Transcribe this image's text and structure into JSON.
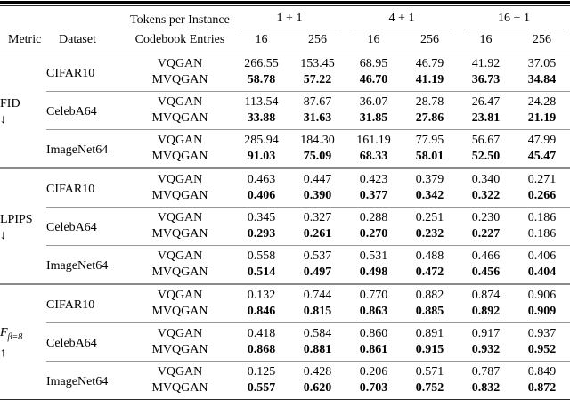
{
  "page": {
    "background": "#ffffff",
    "text_color": "#000000"
  },
  "rule_colors": {
    "heavy": "#000000",
    "header_rule": "#151515",
    "block_divider": "#989898",
    "section_divider": "#8a8a8a",
    "cmidrule": "#999999"
  },
  "table": {
    "header": {
      "tokens_per_instance_label": "Tokens per Instance",
      "codebook_entries_label": "Codebook Entries",
      "metric_label": "Metric",
      "dataset_label": "Dataset",
      "token_groups": [
        "1 + 1",
        "4 + 1",
        "16 + 1"
      ],
      "codebook_sizes": [
        "16",
        "256",
        "16",
        "256",
        "16",
        "256"
      ]
    },
    "sections": [
      {
        "metric": "FID",
        "metric_subscript": "",
        "direction_arrow": "↓",
        "datasets": [
          {
            "name": "CIFAR10",
            "rows": [
              {
                "model": "VQGAN",
                "values": [
                  "266.55",
                  "153.45",
                  "68.95",
                  "46.79",
                  "41.92",
                  "37.05"
                ],
                "bold": [
                  0,
                  0,
                  0,
                  0,
                  0,
                  0
                ]
              },
              {
                "model": "MVQGAN",
                "values": [
                  "58.78",
                  "57.22",
                  "46.70",
                  "41.19",
                  "36.73",
                  "34.84"
                ],
                "bold": [
                  1,
                  1,
                  1,
                  1,
                  1,
                  1
                ]
              }
            ]
          },
          {
            "name": "CelebA64",
            "rows": [
              {
                "model": "VQGAN",
                "values": [
                  "113.54",
                  "87.67",
                  "36.07",
                  "28.78",
                  "26.47",
                  "24.28"
                ],
                "bold": [
                  0,
                  0,
                  0,
                  0,
                  0,
                  0
                ]
              },
              {
                "model": "MVQGAN",
                "values": [
                  "33.88",
                  "31.63",
                  "31.85",
                  "27.86",
                  "23.81",
                  "21.19"
                ],
                "bold": [
                  1,
                  1,
                  1,
                  1,
                  1,
                  1
                ]
              }
            ]
          },
          {
            "name": "ImageNet64",
            "rows": [
              {
                "model": "VQGAN",
                "values": [
                  "285.94",
                  "184.30",
                  "161.19",
                  "77.95",
                  "56.67",
                  "47.99"
                ],
                "bold": [
                  0,
                  0,
                  0,
                  0,
                  0,
                  0
                ]
              },
              {
                "model": "MVQGAN",
                "values": [
                  "91.03",
                  "75.09",
                  "68.33",
                  "58.01",
                  "52.50",
                  "45.47"
                ],
                "bold": [
                  1,
                  1,
                  1,
                  1,
                  1,
                  1
                ]
              }
            ]
          }
        ]
      },
      {
        "metric": "LPIPS",
        "metric_subscript": "",
        "direction_arrow": "↓",
        "datasets": [
          {
            "name": "CIFAR10",
            "rows": [
              {
                "model": "VQGAN",
                "values": [
                  "0.463",
                  "0.447",
                  "0.423",
                  "0.379",
                  "0.340",
                  "0.271"
                ],
                "bold": [
                  0,
                  0,
                  0,
                  0,
                  0,
                  0
                ]
              },
              {
                "model": "MVQGAN",
                "values": [
                  "0.406",
                  "0.390",
                  "0.377",
                  "0.342",
                  "0.322",
                  "0.266"
                ],
                "bold": [
                  1,
                  1,
                  1,
                  1,
                  1,
                  1
                ]
              }
            ]
          },
          {
            "name": "CelebA64",
            "rows": [
              {
                "model": "VQGAN",
                "values": [
                  "0.345",
                  "0.327",
                  "0.288",
                  "0.251",
                  "0.230",
                  "0.186"
                ],
                "bold": [
                  0,
                  0,
                  0,
                  0,
                  0,
                  0
                ]
              },
              {
                "model": "MVQGAN",
                "values": [
                  "0.293",
                  "0.261",
                  "0.270",
                  "0.232",
                  "0.227",
                  "0.186"
                ],
                "bold": [
                  1,
                  1,
                  1,
                  1,
                  1,
                  0
                ]
              }
            ]
          },
          {
            "name": "ImageNet64",
            "rows": [
              {
                "model": "VQGAN",
                "values": [
                  "0.558",
                  "0.537",
                  "0.531",
                  "0.488",
                  "0.466",
                  "0.406"
                ],
                "bold": [
                  0,
                  0,
                  0,
                  0,
                  0,
                  0
                ]
              },
              {
                "model": "MVQGAN",
                "values": [
                  "0.514",
                  "0.497",
                  "0.498",
                  "0.472",
                  "0.456",
                  "0.404"
                ],
                "bold": [
                  1,
                  1,
                  1,
                  1,
                  1,
                  1
                ]
              }
            ]
          }
        ]
      },
      {
        "metric": "F",
        "metric_subscript": "β=8",
        "direction_arrow": "↑",
        "datasets": [
          {
            "name": "CIFAR10",
            "rows": [
              {
                "model": "VQGAN",
                "values": [
                  "0.132",
                  "0.744",
                  "0.770",
                  "0.882",
                  "0.874",
                  "0.906"
                ],
                "bold": [
                  0,
                  0,
                  0,
                  0,
                  0,
                  0
                ]
              },
              {
                "model": "MVQGAN",
                "values": [
                  "0.846",
                  "0.815",
                  "0.863",
                  "0.885",
                  "0.892",
                  "0.909"
                ],
                "bold": [
                  1,
                  1,
                  1,
                  1,
                  1,
                  1
                ]
              }
            ]
          },
          {
            "name": "CelebA64",
            "rows": [
              {
                "model": "VQGAN",
                "values": [
                  "0.418",
                  "0.584",
                  "0.860",
                  "0.891",
                  "0.917",
                  "0.937"
                ],
                "bold": [
                  0,
                  0,
                  0,
                  0,
                  0,
                  0
                ]
              },
              {
                "model": "MVQGAN",
                "values": [
                  "0.868",
                  "0.881",
                  "0.861",
                  "0.915",
                  "0.932",
                  "0.952"
                ],
                "bold": [
                  1,
                  1,
                  1,
                  1,
                  1,
                  1
                ]
              }
            ]
          },
          {
            "name": "ImageNet64",
            "rows": [
              {
                "model": "VQGAN",
                "values": [
                  "0.125",
                  "0.428",
                  "0.206",
                  "0.571",
                  "0.787",
                  "0.849"
                ],
                "bold": [
                  0,
                  0,
                  0,
                  0,
                  0,
                  0
                ]
              },
              {
                "model": "MVQGAN",
                "values": [
                  "0.557",
                  "0.620",
                  "0.703",
                  "0.752",
                  "0.832",
                  "0.872"
                ],
                "bold": [
                  1,
                  1,
                  1,
                  1,
                  1,
                  1
                ]
              }
            ]
          }
        ]
      }
    ]
  }
}
